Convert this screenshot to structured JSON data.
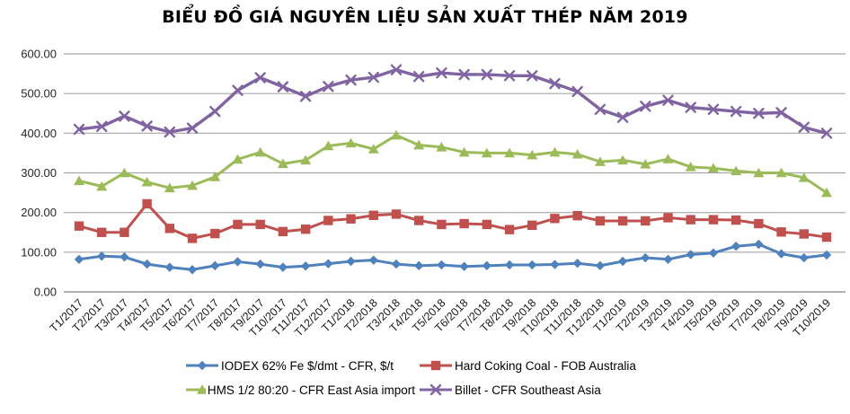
{
  "title": "BIỂU ĐỒ GIÁ NGUYÊN LIỆU SẢN XUẤT THÉP NĂM 2019",
  "colors": {
    "background": "#ffffff",
    "gridline": "#a6a6a6",
    "baseline": "#808080",
    "title_text": "#000000",
    "axis_text": "#262626"
  },
  "chart_data": {
    "type": "line",
    "title": "BIỂU ĐỒ GIÁ NGUYÊN LIỆU SẢN XUẤT THÉP NĂM 2019",
    "xlabel": "",
    "ylabel": "",
    "ylim": [
      0,
      600
    ],
    "ytick_step": 100,
    "grid": true,
    "legend_position": "bottom",
    "yticks": [
      {
        "label": "600.00",
        "value": 600
      },
      {
        "label": "500.00",
        "value": 500
      },
      {
        "label": "400.00",
        "value": 400
      },
      {
        "label": "300.00",
        "value": 300
      },
      {
        "label": "200.00",
        "value": 200
      },
      {
        "label": "100.00",
        "value": 100
      },
      {
        "label": "0.00",
        "value": 0
      }
    ],
    "categories": [
      "T1/2017",
      "T2/2017",
      "T3/2017",
      "T4/2017",
      "T5/2017",
      "T6/2017",
      "T7/2017",
      "T8/2017",
      "T9/2017",
      "T10/2017",
      "T11/2017",
      "T12/2017",
      "T1/2018",
      "T2/2018",
      "T3/2018",
      "T4/2018",
      "T5/2018",
      "T6/2018",
      "T7/2018",
      "T8/2018",
      "T9/2018",
      "T10/2018",
      "T11/2018",
      "T12/2018",
      "T1/2019",
      "T2/2019",
      "T3/2019",
      "T4/2019",
      "T5/2019",
      "T6/2019",
      "T7/2019",
      "T8/2019",
      "T9/2019",
      "T10/2019"
    ],
    "series": [
      {
        "name": "IODEX 62% Fe $/dmt - CFR, $/t",
        "color": "#4f81bd",
        "marker": "diamond",
        "values": [
          82,
          90,
          88,
          70,
          62,
          56,
          66,
          76,
          70,
          62,
          65,
          71,
          77,
          80,
          70,
          66,
          68,
          64,
          66,
          68,
          68,
          69,
          72,
          66,
          77,
          86,
          82,
          94,
          98,
          115,
          120,
          96,
          86,
          93
        ]
      },
      {
        "name": "Hard Coking Coal - FOB Australia",
        "color": "#c0504d",
        "marker": "square",
        "values": [
          166,
          150,
          150,
          222,
          160,
          135,
          147,
          170,
          170,
          152,
          158,
          180,
          184,
          193,
          196,
          180,
          170,
          172,
          170,
          157,
          168,
          185,
          192,
          179,
          179,
          179,
          187,
          182,
          182,
          181,
          172,
          151,
          146,
          138
        ]
      },
      {
        "name": "HMS 1/2 80:20 - CFR East Asia import",
        "color": "#9bbb59",
        "marker": "triangle",
        "values": [
          280,
          266,
          300,
          277,
          262,
          268,
          290,
          334,
          352,
          323,
          332,
          368,
          375,
          360,
          395,
          370,
          365,
          352,
          350,
          350,
          345,
          352,
          347,
          328,
          332,
          322,
          335,
          315,
          312,
          305,
          300,
          300,
          288,
          250
        ]
      },
      {
        "name": "Billet - CFR Southeast Asia",
        "color": "#8064a2",
        "marker": "x",
        "values": [
          410,
          417,
          443,
          418,
          403,
          413,
          455,
          508,
          540,
          517,
          493,
          518,
          534,
          541,
          560,
          543,
          552,
          548,
          548,
          545,
          545,
          525,
          505,
          460,
          440,
          468,
          483,
          465,
          460,
          455,
          450,
          452,
          415,
          400
        ]
      }
    ]
  }
}
